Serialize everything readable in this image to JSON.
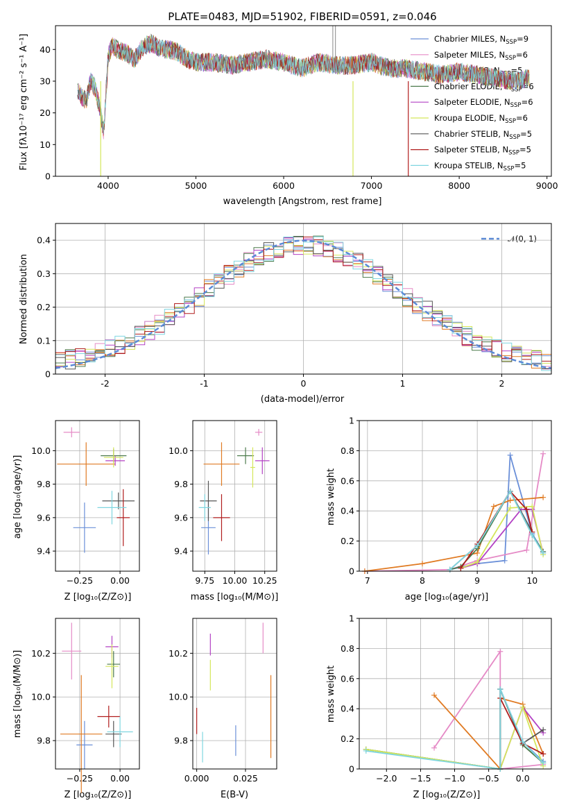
{
  "figure": {
    "title": "PLATE=0483, MJD=51902, FIBERID=0591, z=0.046"
  },
  "series_legend": [
    {
      "label": "Chabrier MILES, N",
      "sub": "SSP",
      "suffix": "=9",
      "color": "#6a8fd8"
    },
    {
      "label": "Salpeter MILES, N",
      "sub": "SSP",
      "suffix": "=6",
      "color": "#e58ac6"
    },
    {
      "label": "Kroupa MILES, N",
      "sub": "SSP",
      "suffix": "=5",
      "color": "#e07a22"
    },
    {
      "label": "Chabrier ELODIE, N",
      "sub": "SSP",
      "suffix": "=6",
      "color": "#4c7a4c"
    },
    {
      "label": "Salpeter ELODIE, N",
      "sub": "SSP",
      "suffix": "=6",
      "color": "#b341c4"
    },
    {
      "label": "Kroupa ELODIE, N",
      "sub": "SSP",
      "suffix": "=6",
      "color": "#d4e65a"
    },
    {
      "label": "Chabrier STELIB, N",
      "sub": "SSP",
      "suffix": "=5",
      "color": "#555555"
    },
    {
      "label": "Salpeter STELIB, N",
      "sub": "SSP",
      "suffix": "=5",
      "color": "#b01c1c"
    },
    {
      "label": "Kroupa STELIB, N",
      "sub": "SSP",
      "suffix": "=5",
      "color": "#7fd6e0"
    }
  ],
  "chart_data": [
    {
      "id": "spectrum",
      "type": "line",
      "title": "PLATE=0483, MJD=51902, FIBERID=0591, z=0.046",
      "xlabel": "wavelength [Angstrom, rest frame]",
      "ylabel": "Flux [fλ10⁻¹⁷ erg cm⁻² s⁻¹ A⁻¹]",
      "xlim": [
        3400,
        9050
      ],
      "ylim": [
        0,
        47.5
      ],
      "xticks": [
        4000,
        5000,
        6000,
        7000,
        8000,
        9000
      ],
      "yticks": [
        0,
        10,
        20,
        30,
        40
      ],
      "grid": false,
      "legend": "top-right",
      "x": [
        3650,
        3700,
        3750,
        3800,
        3850,
        3900,
        3950,
        4000,
        4050,
        4100,
        4200,
        4300,
        4400,
        4500,
        4600,
        4700,
        4800,
        4900,
        5000,
        5200,
        5400,
        5600,
        5800,
        6000,
        6200,
        6400,
        6600,
        6800,
        7000,
        7200,
        7400,
        7600,
        7800,
        8000,
        8200,
        8400,
        8600,
        8800
      ],
      "y": [
        27,
        25,
        24,
        30,
        28,
        22,
        14,
        38,
        41,
        40,
        39,
        37,
        41,
        42,
        40,
        40,
        39,
        37,
        36,
        36,
        35,
        36,
        37,
        36,
        34,
        36,
        35,
        35,
        36,
        34,
        34,
        33,
        32,
        33,
        32,
        31,
        30,
        31
      ]
    },
    {
      "id": "residuals",
      "type": "area",
      "xlabel": "(data-model)/error",
      "ylabel": "Normed distribution",
      "xlim": [
        -2.5,
        2.5
      ],
      "ylim": [
        0,
        0.45
      ],
      "xticks": [
        -2,
        -1,
        0,
        1,
        2
      ],
      "yticks": [
        0.0,
        0.1,
        0.2,
        0.3,
        0.4
      ],
      "grid": true,
      "legend": "top-right",
      "reference_label": "𝒩(0, 1)",
      "reference_color": "#5b8ad6"
    },
    {
      "id": "age-vs-z",
      "type": "scatter",
      "xlabel": "Z [log₁₀(Z/Z⊙)]",
      "ylabel": "age  [log₁₀(age/yr)]",
      "xlim": [
        -0.4,
        0.12
      ],
      "ylim": [
        9.28,
        10.18
      ],
      "xticks": [
        -0.25,
        0.0
      ],
      "xticklabels": [
        "−0.25",
        "0.00"
      ],
      "yticks": [
        9.4,
        9.6,
        9.8,
        10.0
      ],
      "yticklabels": [
        "9.4",
        "9.6",
        "9.8",
        "10.0"
      ],
      "grid": true,
      "points": [
        {
          "x": -0.3,
          "y": 10.11,
          "xerr": 0.05,
          "yerr": 0.03
        },
        {
          "x": -0.21,
          "y": 9.92,
          "xerr": 0.18,
          "yerr": 0.13
        },
        {
          "x": -0.22,
          "y": 9.54,
          "xerr": 0.07,
          "yerr": 0.15
        },
        {
          "x": -0.04,
          "y": 9.97,
          "xerr": 0.08,
          "yerr": 0.04
        },
        {
          "x": -0.03,
          "y": 9.94,
          "xerr": 0.06,
          "yerr": 0.03
        },
        {
          "x": -0.04,
          "y": 9.96,
          "xerr": 0.06,
          "yerr": 0.06
        },
        {
          "x": -0.01,
          "y": 9.7,
          "xerr": 0.1,
          "yerr": 0.05
        },
        {
          "x": 0.02,
          "y": 9.6,
          "xerr": 0.04,
          "yerr": 0.17
        },
        {
          "x": -0.05,
          "y": 9.66,
          "xerr": 0.09,
          "yerr": 0.1
        }
      ]
    },
    {
      "id": "age-vs-mass",
      "type": "scatter",
      "xlabel": "mass [log₁₀(M/M⊙)]",
      "ylabel": "",
      "xlim": [
        9.65,
        10.35
      ],
      "ylim": [
        9.28,
        10.18
      ],
      "xticks": [
        9.75,
        10.0,
        10.25
      ],
      "xticklabels": [
        "9.75",
        "10.00",
        "10.25"
      ],
      "yticks": [
        9.4,
        9.6,
        9.8,
        10.0
      ],
      "yticklabels": [
        "9.4",
        "9.6",
        "9.8",
        "10.0"
      ],
      "grid": true,
      "points": [
        {
          "x": 9.78,
          "y": 9.54,
          "xerr": 0.06,
          "yerr": 0.16
        },
        {
          "x": 10.2,
          "y": 10.11,
          "xerr": 0.03,
          "yerr": 0.02
        },
        {
          "x": 9.89,
          "y": 9.92,
          "xerr": 0.15,
          "yerr": 0.13
        },
        {
          "x": 10.09,
          "y": 9.97,
          "xerr": 0.07,
          "yerr": 0.05
        },
        {
          "x": 10.23,
          "y": 9.94,
          "xerr": 0.06,
          "yerr": 0.08
        },
        {
          "x": 10.15,
          "y": 9.9,
          "xerr": 0.02,
          "yerr": 0.12
        },
        {
          "x": 9.78,
          "y": 9.7,
          "xerr": 0.07,
          "yerr": 0.12
        },
        {
          "x": 9.89,
          "y": 9.6,
          "xerr": 0.07,
          "yerr": 0.14
        },
        {
          "x": 9.75,
          "y": 9.66,
          "xerr": 0.05,
          "yerr": 0.08
        }
      ]
    },
    {
      "id": "weight-vs-age",
      "type": "line",
      "xlabel": "age  [log₁₀(age/yr)]",
      "ylabel": "mass weight",
      "xlim": [
        6.85,
        10.35
      ],
      "ylim": [
        0,
        1
      ],
      "xticks": [
        7,
        8,
        9,
        10
      ],
      "yticks": [
        0.0,
        0.2,
        0.4,
        0.6,
        0.8,
        1.0
      ],
      "grid": true,
      "series": [
        {
          "x": [
            8.5,
            9.0,
            9.5,
            9.6,
            10.0,
            10.2
          ],
          "y": [
            0.01,
            0.05,
            0.07,
            0.77,
            0.25,
            0.13
          ]
        },
        {
          "x": [
            6.95,
            8.5,
            9.0,
            9.9,
            10.2
          ],
          "y": [
            0.0,
            0.01,
            0.07,
            0.14,
            0.78
          ]
        },
        {
          "x": [
            6.95,
            8.0,
            9.0,
            9.3,
            9.6,
            10.2
          ],
          "y": [
            0.0,
            0.05,
            0.12,
            0.43,
            0.47,
            0.49
          ]
        },
        {
          "x": [
            8.5,
            8.7,
            9.0,
            9.6,
            10.0,
            10.2
          ],
          "y": [
            0.01,
            0.03,
            0.15,
            0.53,
            0.24,
            0.13
          ]
        },
        {
          "x": [
            8.7,
            9.0,
            9.8,
            10.0,
            10.2
          ],
          "y": [
            0.02,
            0.05,
            0.41,
            0.41,
            0.12
          ]
        },
        {
          "x": [
            8.7,
            9.0,
            9.6,
            10.0,
            10.2
          ],
          "y": [
            0.02,
            0.06,
            0.42,
            0.43,
            0.11
          ]
        },
        {
          "x": [
            8.5,
            9.0,
            9.6,
            10.0
          ],
          "y": [
            0.01,
            0.17,
            0.53,
            0.26
          ]
        },
        {
          "x": [
            8.7,
            9.0,
            9.6,
            9.9,
            10.0
          ],
          "y": [
            0.02,
            0.18,
            0.53,
            0.41,
            0.26
          ]
        },
        {
          "x": [
            8.5,
            9.0,
            9.6,
            10.0,
            10.2
          ],
          "y": [
            0.01,
            0.17,
            0.53,
            0.24,
            0.12
          ]
        }
      ]
    },
    {
      "id": "mass-vs-z",
      "type": "scatter",
      "xlabel": "Z [log₁₀(Z/Z⊙)]",
      "ylabel": "mass [log₁₀(M/M⊙)]",
      "xlim": [
        -0.4,
        0.12
      ],
      "ylim": [
        9.67,
        10.36
      ],
      "xticks": [
        -0.25,
        0.0
      ],
      "xticklabels": [
        "−0.25",
        "0.00"
      ],
      "yticks": [
        9.8,
        10.0,
        10.2
      ],
      "yticklabels": [
        "9.8",
        "10.0",
        "10.2"
      ],
      "grid": true,
      "points": [
        {
          "x": -0.3,
          "y": 10.21,
          "xerr": 0.06,
          "yerr": 0.13
        },
        {
          "x": -0.22,
          "y": 9.78,
          "xerr": 0.05,
          "yerr": 0.11
        },
        {
          "x": -0.24,
          "y": 9.83,
          "xerr": 0.13,
          "yerr": 0.27
        },
        {
          "x": -0.04,
          "y": 10.15,
          "xerr": 0.04,
          "yerr": 0.06
        },
        {
          "x": -0.05,
          "y": 10.23,
          "xerr": 0.04,
          "yerr": 0.05
        },
        {
          "x": -0.05,
          "y": 10.14,
          "xerr": 0.04,
          "yerr": 0.1
        },
        {
          "x": -0.04,
          "y": 9.83,
          "xerr": 0.05,
          "yerr": 0.06
        },
        {
          "x": -0.07,
          "y": 9.91,
          "xerr": 0.07,
          "yerr": 0.05
        },
        {
          "x": 0.0,
          "y": 9.84,
          "xerr": 0.08,
          "yerr": 0.07
        }
      ]
    },
    {
      "id": "mass-vs-ebv",
      "type": "scatter",
      "xlabel": "E(B-V)",
      "ylabel": "",
      "xlim": [
        -0.002,
        0.041
      ],
      "ylim": [
        9.67,
        10.36
      ],
      "xticks": [
        0.0,
        0.025
      ],
      "xticklabels": [
        "0.000",
        "0.025"
      ],
      "yticks": [
        9.8,
        10.0,
        10.2
      ],
      "yticklabels": [
        "9.8",
        "10.0",
        "10.2"
      ],
      "grid": true,
      "points": [
        {
          "x": 0.0,
          "y": 9.89,
          "yerr": 0.06
        },
        {
          "x": 0.003,
          "y": 9.77,
          "yerr": 0.07
        },
        {
          "x": 0.007,
          "y": 10.24,
          "yerr": 0.05
        },
        {
          "x": 0.007,
          "y": 10.1,
          "yerr": 0.07
        },
        {
          "x": 0.02,
          "y": 9.8,
          "yerr": 0.07
        },
        {
          "x": 0.034,
          "y": 10.27,
          "yerr": 0.07
        },
        {
          "x": 0.038,
          "y": 9.91,
          "yerr": 0.19
        }
      ]
    },
    {
      "id": "weight-vs-z",
      "type": "line",
      "xlabel": "Z [log₁₀(Z/Z⊙)]",
      "ylabel": "mass weight",
      "xlim": [
        -2.4,
        0.42
      ],
      "ylim": [
        0,
        1
      ],
      "xticks": [
        -2.0,
        -1.5,
        -1.0,
        -0.5,
        0.0
      ],
      "xticklabels": [
        "−2.0",
        "−1.5",
        "−1.0",
        "−0.5",
        "0.0"
      ],
      "yticks": [
        0.0,
        0.2,
        0.4,
        0.6,
        0.8,
        1.0
      ],
      "grid": true,
      "series": [
        {
          "x": [
            -2.3,
            -0.33,
            -0.33,
            0.0,
            0.3
          ],
          "y": [
            0.13,
            0.0,
            0.53,
            0.18,
            0.05
          ]
        },
        {
          "x": [
            -1.3,
            -0.33,
            -0.33,
            0.3
          ],
          "y": [
            0.14,
            0.78,
            0.0,
            0.03
          ]
        },
        {
          "x": [
            -1.3,
            -0.33,
            -0.33,
            0.0,
            0.3
          ],
          "y": [
            0.49,
            0.0,
            0.47,
            0.43,
            0.1
          ]
        },
        {
          "x": [
            -2.3,
            -0.33,
            -0.33,
            0.0,
            0.3
          ],
          "y": [
            0.13,
            0.0,
            0.53,
            0.16,
            0.04
          ]
        },
        {
          "x": [
            -0.33,
            0.0,
            0.3
          ],
          "y": [
            0.0,
            0.41,
            0.24
          ]
        },
        {
          "x": [
            -2.3,
            -0.33,
            0.0,
            0.3
          ],
          "y": [
            0.13,
            0.0,
            0.41,
            0.02
          ]
        },
        {
          "x": [
            -0.33,
            -0.33,
            0.0,
            0.3
          ],
          "y": [
            0.0,
            0.53,
            0.17,
            0.26
          ]
        },
        {
          "x": [
            -0.33,
            0.0,
            0.3
          ],
          "y": [
            0.47,
            0.17,
            0.1
          ]
        },
        {
          "x": [
            -2.3,
            -0.33,
            -0.33,
            0.0,
            0.3
          ],
          "y": [
            0.12,
            0.0,
            0.53,
            0.18,
            0.04
          ]
        }
      ]
    }
  ]
}
